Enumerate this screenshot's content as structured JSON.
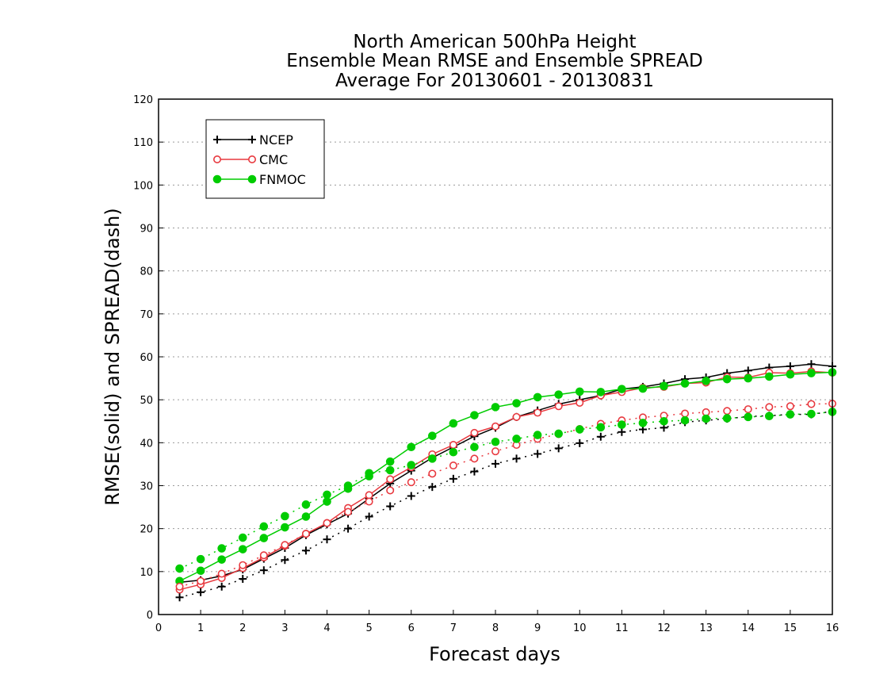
{
  "chart_data": {
    "type": "line",
    "title_lines": [
      "North American 500hPa Height",
      "Ensemble Mean RMSE and Ensemble SPREAD",
      "Average For 20130601 - 20130831"
    ],
    "xlabel": "Forecast days",
    "ylabel": "RMSE(solid) and SPREAD(dash)",
    "xlim": [
      0,
      16
    ],
    "ylim": [
      0,
      120
    ],
    "xticks": [
      0,
      1,
      2,
      3,
      4,
      5,
      6,
      7,
      8,
      9,
      10,
      11,
      12,
      13,
      14,
      15,
      16
    ],
    "yticks": [
      0,
      10,
      20,
      30,
      40,
      50,
      60,
      70,
      80,
      90,
      100,
      110,
      120
    ],
    "grid": "horizontal dotted",
    "legend_position": "top-left",
    "legend": [
      "NCEP",
      "CMC",
      "FNMOC"
    ],
    "x": [
      0.5,
      1,
      1.5,
      2,
      2.5,
      3,
      3.5,
      4,
      4.5,
      5,
      5.5,
      6,
      6.5,
      7,
      7.5,
      8,
      8.5,
      9,
      9.5,
      10,
      10.5,
      11,
      11.5,
      12,
      12.5,
      13,
      13.5,
      14,
      14.5,
      15,
      15.5,
      16
    ],
    "series": [
      {
        "name": "NCEP",
        "metric": "RMSE",
        "style": "solid",
        "color": "#000000",
        "marker": "plus",
        "values": [
          7.5,
          8.0,
          9.0,
          10.5,
          13.0,
          15.5,
          18.5,
          21.0,
          23.5,
          27.0,
          30.5,
          33.5,
          36.5,
          39.0,
          41.5,
          43.5,
          46.0,
          47.5,
          49.0,
          50.0,
          51.0,
          52.5,
          53.0,
          53.8,
          54.8,
          55.2,
          56.2,
          56.8,
          57.5,
          57.8,
          58.3,
          57.8
        ]
      },
      {
        "name": "CMC",
        "metric": "RMSE",
        "style": "solid",
        "color": "#e8393f",
        "marker": "open-circle",
        "values": [
          5.8,
          7.0,
          8.5,
          10.8,
          13.3,
          16.0,
          18.8,
          21.3,
          24.8,
          27.8,
          31.5,
          34.3,
          37.3,
          39.5,
          42.3,
          43.8,
          46.0,
          47.0,
          48.5,
          49.3,
          51.0,
          51.8,
          52.8,
          53.0,
          53.8,
          54.0,
          55.3,
          55.2,
          56.3,
          56.2,
          56.6,
          56.3
        ]
      },
      {
        "name": "FNMOC",
        "metric": "RMSE",
        "style": "solid",
        "color": "#00cc00",
        "marker": "filled-circle",
        "values": [
          7.8,
          10.2,
          12.8,
          15.2,
          17.8,
          20.3,
          22.8,
          26.3,
          29.3,
          32.2,
          35.6,
          39.0,
          41.6,
          44.5,
          46.4,
          48.3,
          49.2,
          50.6,
          51.2,
          51.9,
          51.8,
          52.5,
          52.6,
          53.2,
          53.8,
          54.4,
          54.8,
          55.0,
          55.4,
          55.9,
          56.2,
          56.4
        ]
      },
      {
        "name": "NCEP",
        "metric": "SPREAD",
        "style": "dash",
        "color": "#000000",
        "marker": "plus",
        "values": [
          4.0,
          5.2,
          6.5,
          8.3,
          10.3,
          12.7,
          14.9,
          17.5,
          20.0,
          22.8,
          25.2,
          27.6,
          29.7,
          31.6,
          33.3,
          35.1,
          36.3,
          37.4,
          38.7,
          39.9,
          41.4,
          42.5,
          43.1,
          43.5,
          44.8,
          45.2,
          45.6,
          46.1,
          46.3,
          46.6,
          46.6,
          47.3
        ]
      },
      {
        "name": "CMC",
        "metric": "SPREAD",
        "style": "dash",
        "color": "#e8393f",
        "marker": "open-circle",
        "values": [
          6.5,
          7.8,
          9.5,
          11.5,
          13.8,
          16.2,
          18.8,
          21.3,
          23.9,
          26.3,
          28.9,
          30.8,
          32.8,
          34.7,
          36.3,
          38.0,
          39.5,
          40.9,
          42.0,
          43.2,
          44.4,
          45.2,
          45.9,
          46.3,
          46.8,
          47.1,
          47.4,
          47.8,
          48.3,
          48.5,
          49.0,
          49.1
        ]
      },
      {
        "name": "FNMOC",
        "metric": "SPREAD",
        "style": "dash",
        "color": "#00cc00",
        "marker": "filled-circle",
        "values": [
          10.7,
          12.9,
          15.4,
          17.9,
          20.5,
          22.9,
          25.6,
          27.9,
          30.0,
          32.9,
          33.6,
          34.8,
          36.3,
          37.8,
          39.0,
          40.2,
          40.9,
          41.8,
          42.1,
          43.1,
          43.6,
          44.2,
          44.6,
          45.0,
          45.2,
          45.6,
          45.7,
          46.0,
          46.2,
          46.6,
          46.7,
          47.2
        ]
      }
    ]
  }
}
